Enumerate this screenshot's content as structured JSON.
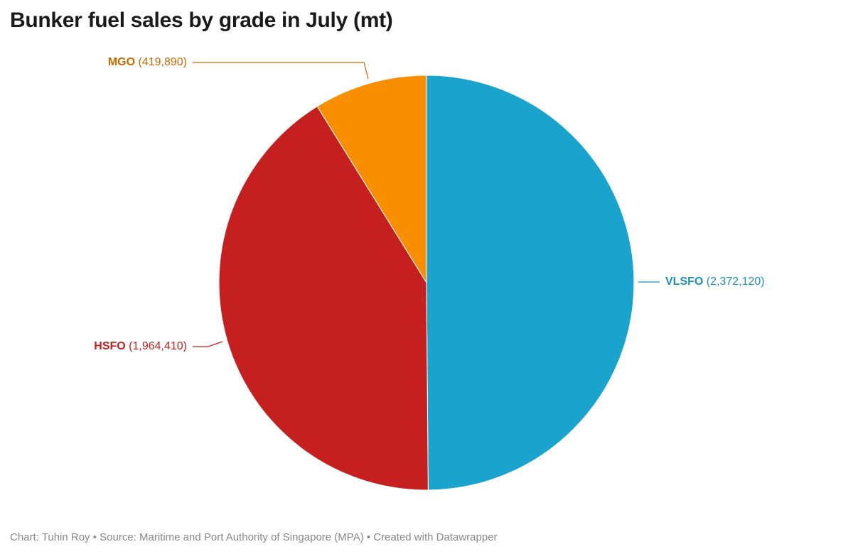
{
  "chart_data": {
    "type": "pie",
    "title": "Bunker fuel sales by grade in July (mt)",
    "slices": [
      {
        "name": "VLSFO",
        "value": 2372120,
        "label": "(2,372,120)",
        "color": "#1aa3cd",
        "text_color": "#1a91b8"
      },
      {
        "name": "HSFO",
        "value": 1964410,
        "label": "(1,964,410)",
        "color": "#c51f1f",
        "text_color": "#c51f1f"
      },
      {
        "name": "MGO",
        "value": 419890,
        "label": "(419,890)",
        "color": "#f78f00",
        "text_color": "#c76a00"
      }
    ]
  },
  "footer": {
    "text": "Chart: Tuhin Roy • Source: Maritime and Port Authority of Singapore (MPA) • Created with Datawrapper"
  }
}
